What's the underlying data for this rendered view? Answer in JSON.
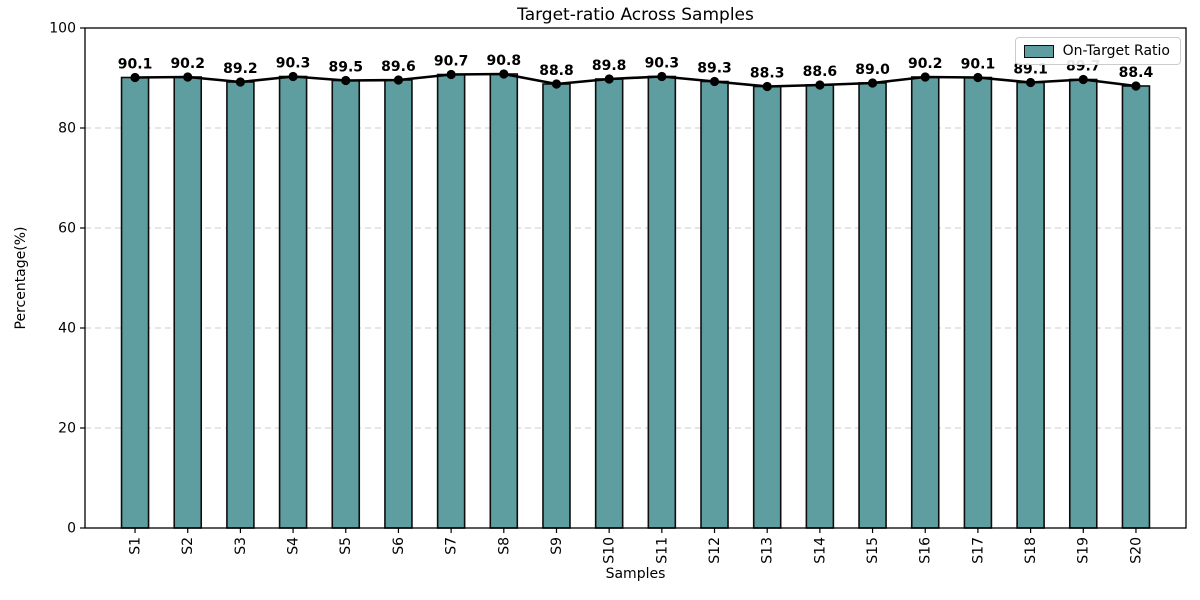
{
  "chart_data": {
    "type": "bar",
    "title": "Target-ratio Across Samples",
    "xlabel": "Samples",
    "ylabel": "Percentage(%)",
    "categories": [
      "S1",
      "S2",
      "S3",
      "S4",
      "S5",
      "S6",
      "S7",
      "S8",
      "S9",
      "S10",
      "S11",
      "S12",
      "S13",
      "S14",
      "S15",
      "S16",
      "S17",
      "S18",
      "S19",
      "S20"
    ],
    "series": [
      {
        "name": "On-Target Ratio",
        "type": "bar",
        "values": [
          90.1,
          90.2,
          89.2,
          90.3,
          89.5,
          89.6,
          90.7,
          90.8,
          88.8,
          89.8,
          90.3,
          89.3,
          88.3,
          88.6,
          89.0,
          90.2,
          90.1,
          89.1,
          89.7,
          88.4
        ]
      },
      {
        "name": "trend-line-overlay",
        "type": "line",
        "marker": "circle",
        "values": [
          90.1,
          90.2,
          89.2,
          90.3,
          89.5,
          89.6,
          90.7,
          90.8,
          88.8,
          89.8,
          90.3,
          89.3,
          88.3,
          88.6,
          89.0,
          90.2,
          90.1,
          89.1,
          89.7,
          88.4
        ]
      }
    ],
    "value_labels": [
      "90.1",
      "90.2",
      "89.2",
      "90.3",
      "89.5",
      "89.6",
      "90.7",
      "90.8",
      "88.8",
      "89.8",
      "90.3",
      "89.3",
      "88.3",
      "88.6",
      "89.0",
      "90.2",
      "90.1",
      "89.1",
      "89.7",
      "88.4"
    ],
    "ylim": [
      0,
      100
    ],
    "yticks": [
      0,
      20,
      40,
      60,
      80,
      100
    ],
    "grid": {
      "axis": "y",
      "style": "dashed",
      "on": true
    },
    "legend": {
      "position": "upper right",
      "entries": [
        {
          "label": "On-Target Ratio",
          "color": "#5f9ea0"
        }
      ]
    },
    "colors": {
      "bar_fill": "#5f9ea0",
      "bar_edge": "#0d0d0d",
      "line": "#000000",
      "marker": "#000000",
      "grid": "#cccccc",
      "axis": "#000000",
      "text": "#000000",
      "background": "#ffffff"
    }
  }
}
